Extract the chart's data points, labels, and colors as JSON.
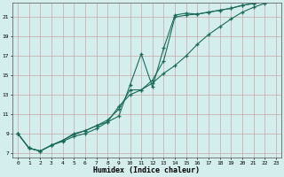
{
  "xlabel": "Humidex (Indice chaleur)",
  "bg_color": "#d4eeee",
  "grid_color": "#c0dede",
  "line_color": "#1a6b5a",
  "xlim": [
    -0.5,
    23.5
  ],
  "ylim": [
    6.5,
    22.5
  ],
  "yticks": [
    7,
    9,
    11,
    13,
    15,
    17,
    19,
    21
  ],
  "xticks": [
    0,
    1,
    2,
    3,
    4,
    5,
    6,
    7,
    8,
    9,
    10,
    11,
    12,
    13,
    14,
    15,
    16,
    17,
    18,
    19,
    20,
    21,
    22,
    23
  ],
  "line1_x": [
    0,
    1,
    2,
    3,
    4,
    5,
    6,
    7,
    8,
    9,
    10,
    11,
    12,
    13,
    14,
    15,
    16,
    17,
    18,
    19,
    20,
    21,
    22,
    23
  ],
  "line1_y": [
    9.0,
    7.5,
    7.2,
    7.8,
    8.3,
    9.0,
    9.3,
    9.8,
    10.2,
    10.8,
    14.0,
    17.2,
    13.8,
    17.8,
    21.2,
    21.4,
    21.3,
    21.5,
    21.7,
    21.9,
    22.2,
    22.4,
    22.6,
    22.8
  ],
  "line2_x": [
    0,
    1,
    2,
    3,
    4,
    5,
    6,
    7,
    8,
    9,
    10,
    11,
    12,
    13,
    14,
    15,
    16,
    17,
    18,
    19,
    20,
    21,
    22,
    23
  ],
  "line2_y": [
    9.0,
    7.5,
    7.2,
    7.8,
    8.3,
    8.9,
    9.3,
    9.8,
    10.4,
    11.5,
    13.5,
    13.5,
    14.5,
    16.5,
    21.0,
    21.2,
    21.3,
    21.5,
    21.7,
    21.9,
    22.2,
    22.4,
    22.6,
    22.8
  ],
  "line3_x": [
    0,
    1,
    2,
    3,
    4,
    5,
    6,
    7,
    8,
    9,
    10,
    11,
    12,
    13,
    14,
    15,
    16,
    17,
    18,
    19,
    20,
    21,
    22,
    23
  ],
  "line3_y": [
    9.0,
    7.5,
    7.2,
    7.8,
    8.2,
    8.7,
    9.0,
    9.5,
    10.2,
    11.8,
    13.0,
    13.5,
    14.2,
    15.2,
    16.0,
    17.0,
    18.2,
    19.2,
    20.0,
    20.8,
    21.5,
    22.0,
    22.4,
    22.7
  ]
}
